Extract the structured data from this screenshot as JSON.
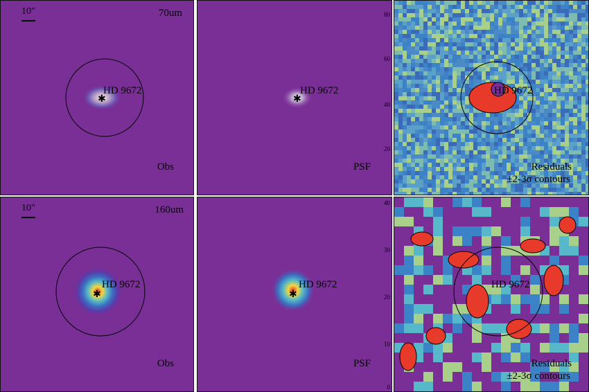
{
  "colors": {
    "background_purple": "#7a2f97",
    "residual_blue": "#3c82c6",
    "residual_green": "#a8d08a",
    "residual_red": "#e83a2a",
    "contour": "#000000"
  },
  "rows": [
    {
      "band_label": "70um",
      "scale_label": "10\"",
      "target_label": "HD 9672",
      "obs_caption": "Obs",
      "psf_caption": "PSF",
      "residual_caption_line1": "Residuals",
      "residual_caption_line2": "±2-3σ contours",
      "axis_ticks": [
        "80",
        "60",
        "40",
        "20"
      ]
    },
    {
      "band_label": "160um",
      "scale_label": "10\"",
      "target_label": "HD 9672",
      "obs_caption": "Obs",
      "psf_caption": "PSF",
      "residual_caption_line1": "Residuals",
      "residual_caption_line2": "±2-3σ contours",
      "axis_ticks": [
        "40",
        "30",
        "20",
        "10",
        "0"
      ]
    }
  ]
}
